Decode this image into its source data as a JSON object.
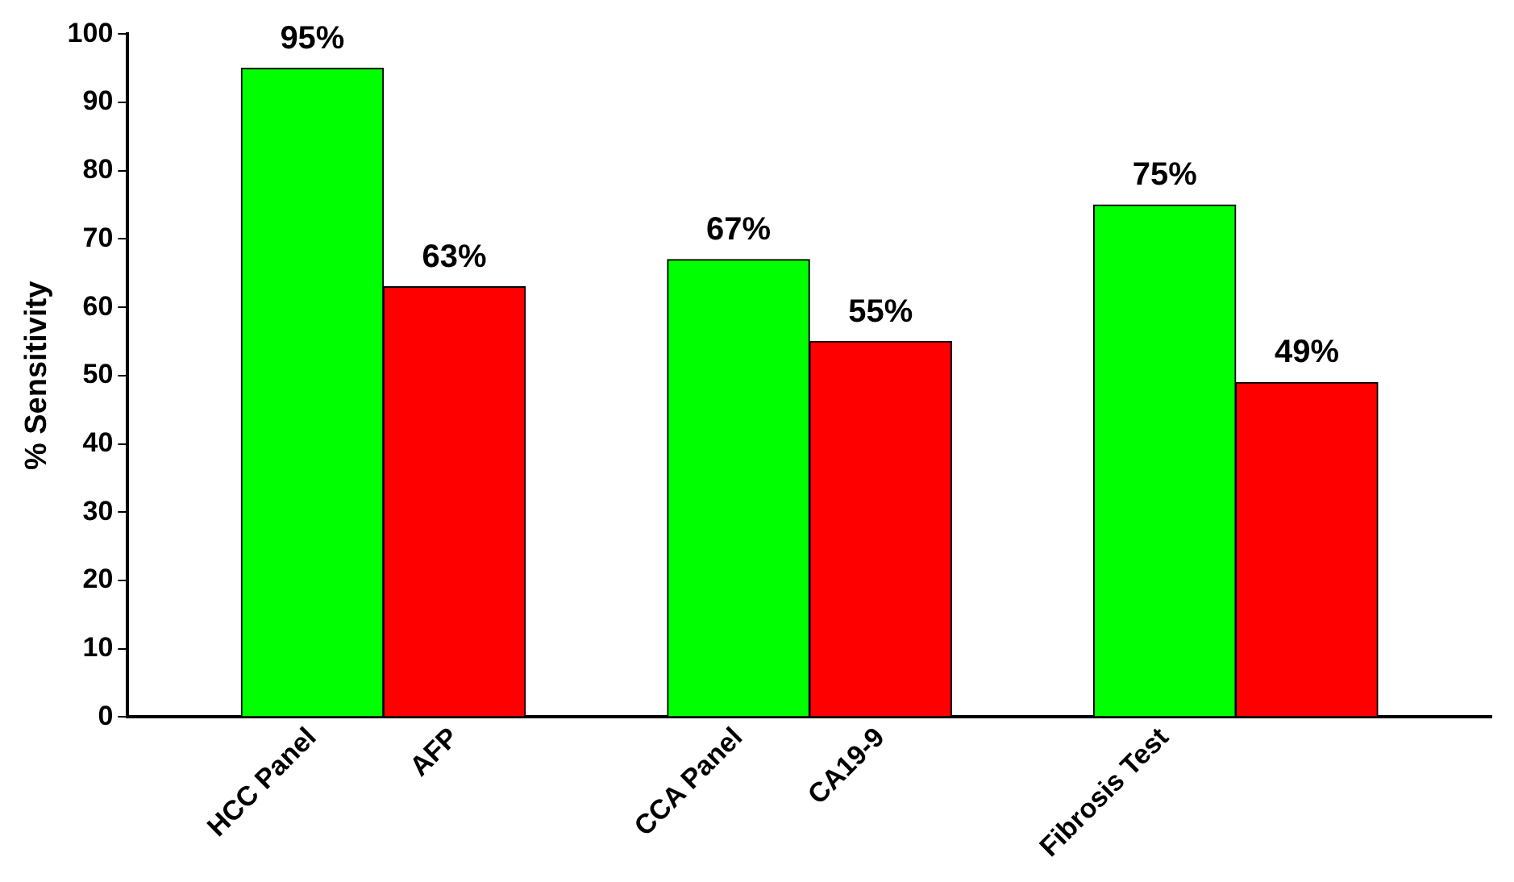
{
  "chart_data": {
    "type": "bar",
    "ylabel": "% Sensitivity",
    "categories": [
      "HCC Panel",
      "AFP",
      "CCA Panel",
      "CA19-9",
      "Fibrosis Test",
      null
    ],
    "values": [
      95,
      63,
      67,
      55,
      75,
      49
    ],
    "value_labels": [
      "95%",
      "63%",
      "67%",
      "55%",
      "75%",
      "49%"
    ],
    "colors": [
      "#00ff00",
      "#ff0000",
      "#00ff00",
      "#ff0000",
      "#00ff00",
      "#ff0000"
    ],
    "ylim": [
      0,
      100
    ],
    "yticks": [
      0,
      10,
      20,
      30,
      40,
      50,
      60,
      70,
      80,
      90,
      100
    ],
    "grid": false,
    "legend": false
  }
}
